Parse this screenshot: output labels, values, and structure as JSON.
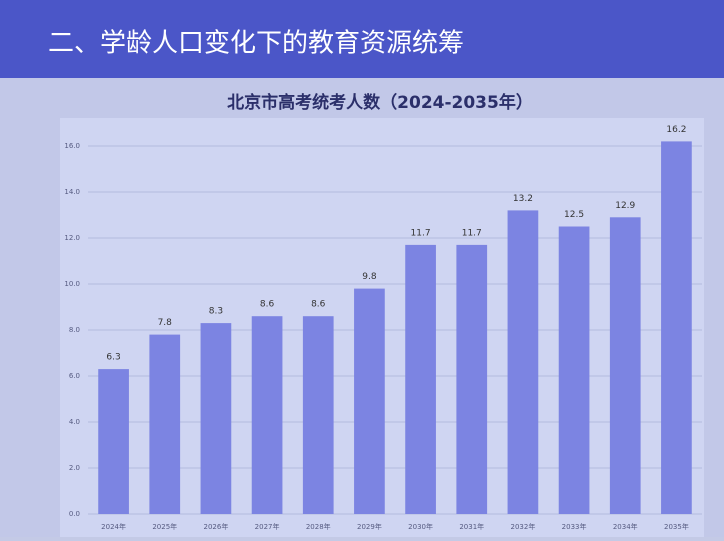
{
  "heading": "二、学龄人口变化下的教育资源统筹",
  "chart_data": {
    "type": "bar",
    "title": "北京市高考统考人数（2024-2035年）",
    "categories": [
      "2024年",
      "2025年",
      "2026年",
      "2027年",
      "2028年",
      "2029年",
      "2030年",
      "2031年",
      "2032年",
      "2033年",
      "2034年",
      "2035年"
    ],
    "values": [
      6.3,
      7.8,
      8.3,
      8.6,
      8.6,
      9.8,
      11.7,
      11.7,
      13.2,
      12.5,
      12.9,
      16.2
    ],
    "color": "#7c84e2",
    "ylim": [
      0,
      16
    ],
    "yticks": [
      {
        "value": 0,
        "label": "0.0"
      },
      {
        "value": 2,
        "label": "2.0"
      },
      {
        "value": 4,
        "label": "4.0"
      },
      {
        "value": 6,
        "label": "6.0"
      },
      {
        "value": 8,
        "label": "8.0"
      },
      {
        "value": 10,
        "label": "10.0"
      },
      {
        "value": 12,
        "label": "12.0"
      },
      {
        "value": 14,
        "label": "14.0"
      },
      {
        "value": 16,
        "label": "16.0"
      }
    ],
    "grid": true
  }
}
